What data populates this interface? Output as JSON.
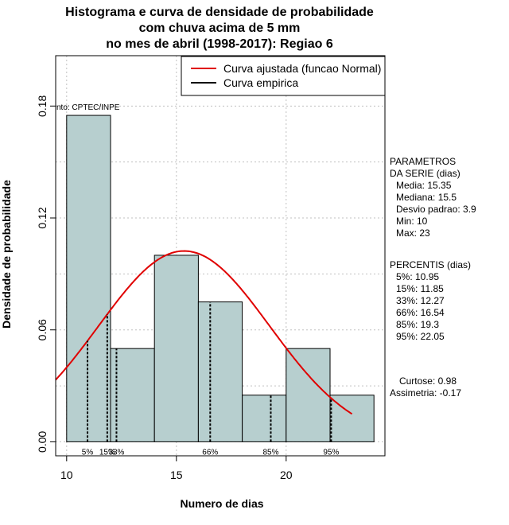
{
  "chart_data": {
    "type": "bar",
    "title_lines": [
      "Histograma e curva de densidade de probabilidade",
      "com chuva acima de 5 mm",
      "no mes de abril (1998-2017): Regiao 6"
    ],
    "xlabel": "Numero de dias",
    "ylabel": "Densidade de probabilidade",
    "xlim": [
      9.5,
      24.5
    ],
    "ylim": [
      -0.0075,
      0.207
    ],
    "x_ticks": [
      10,
      15,
      20
    ],
    "y_ticks": [
      0.0,
      0.06,
      0.12,
      0.18
    ],
    "y_tick_labels": [
      "0.00",
      "0.06",
      "0.12",
      "0.18"
    ],
    "grid": true,
    "bars": [
      {
        "x0": 10,
        "x1": 12,
        "value": 0.175
      },
      {
        "x0": 12,
        "x1": 14,
        "value": 0.05
      },
      {
        "x0": 14,
        "x1": 16,
        "value": 0.1
      },
      {
        "x0": 16,
        "x1": 18,
        "value": 0.075
      },
      {
        "x0": 18,
        "x1": 20,
        "value": 0.025
      },
      {
        "x0": 20,
        "x1": 22,
        "value": 0.05
      },
      {
        "x0": 22,
        "x1": 24,
        "value": 0.025
      }
    ],
    "bar_color": "#b7cfcf",
    "normal_curve": {
      "name": "Curva ajustada (funcao Normal)",
      "mean": 15.35,
      "sd": 3.9,
      "x_from": 9.5,
      "x_to": 23,
      "color": "#e00000"
    },
    "empirical_curve": {
      "name": "Curva empirica",
      "color": "#000000"
    },
    "legend_position": "top-right",
    "percentiles": [
      {
        "label": "5%",
        "value": 10.95
      },
      {
        "label": "15%",
        "value": 11.85
      },
      {
        "label": "33%",
        "value": 12.27
      },
      {
        "label": "66%",
        "value": 16.54
      },
      {
        "label": "85%",
        "value": 19.3
      },
      {
        "label": "95%",
        "value": 22.05
      }
    ],
    "source_annotation": "nto: CPTEC/INPE",
    "side_panel": {
      "params_title": [
        "PARAMETROS",
        "DA SERIE (dias)"
      ],
      "params": [
        "Media: 15.35",
        "Mediana: 15.5",
        "Desvio padrao: 3.9",
        "Min: 10",
        "Max: 23"
      ],
      "percentis_title": "PERCENTIS (dias)",
      "percentis": [
        "5%: 10.95",
        "15%: 11.85",
        "33%: 12.27",
        "66%: 16.54",
        "85%: 19.3",
        "95%: 22.05"
      ],
      "shape": [
        "Curtose: 0.98",
        "Assimetria: -0.17"
      ]
    }
  }
}
